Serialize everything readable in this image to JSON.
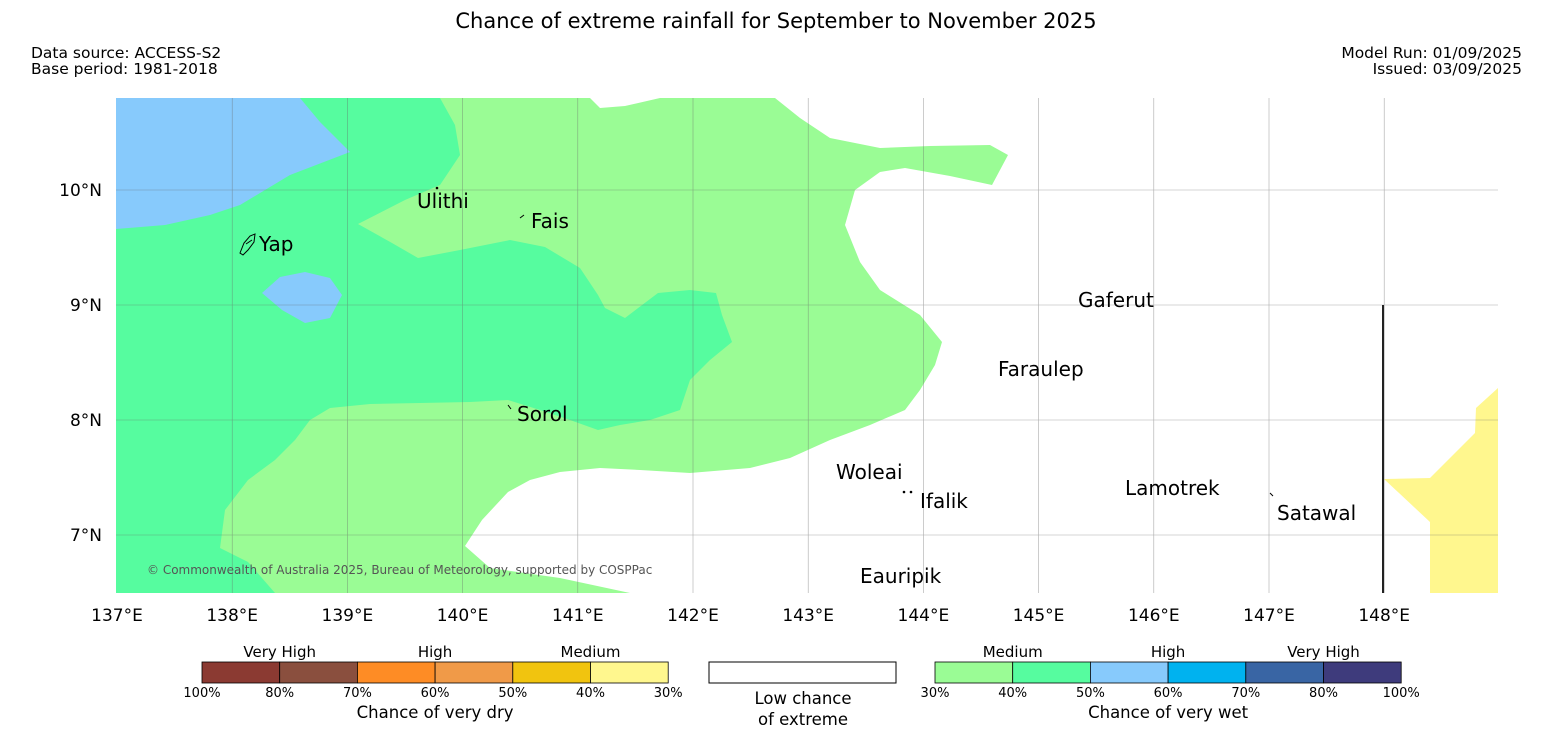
{
  "title": "Chance of extreme rainfall for September to November 2025",
  "meta": {
    "data_source": "Data source: ACCESS-S2",
    "base_period": "Base period: 1981-2018",
    "model_run": "Model Run: 01/09/2025",
    "issued": "Issued: 03/09/2025"
  },
  "map": {
    "copyright": "© Commonwealth of Australia 2025, Bureau of Meteorology, supported by COSPPac",
    "lon_ticks": [
      "137°E",
      "138°E",
      "139°E",
      "140°E",
      "141°E",
      "142°E",
      "143°E",
      "144°E",
      "145°E",
      "146°E",
      "147°E",
      "148°E"
    ],
    "lat_ticks": [
      "10°N",
      "9°N",
      "8°N",
      "7°N"
    ],
    "places": {
      "ulithi": "Ulithi",
      "fais": "Fais",
      "yap": "Yap",
      "gaferut": "Gaferut",
      "faraulep": "Faraulep",
      "sorol": "Sorol",
      "woleai": "Woleai",
      "ifalik": "Ifalik",
      "lamotrek": "Lamotrek",
      "satawal": "Satawal",
      "eauripik": "Eauripik"
    }
  },
  "legend": {
    "dry": {
      "caption": "Chance of very dry",
      "headers": [
        "Very High",
        "High",
        "Medium"
      ],
      "colors": [
        "#8b3a32",
        "#8a4f3e",
        "#fe8c25",
        "#f09a48",
        "#f1c40f",
        "#fff78e"
      ],
      "ticks": [
        "100%",
        "80%",
        "70%",
        "60%",
        "50%",
        "40%",
        "30%"
      ]
    },
    "low": {
      "caption_line1": "Low chance",
      "caption_line2": "of extreme"
    },
    "wet": {
      "caption": "Chance of very wet",
      "headers": [
        "Medium",
        "High",
        "Very High"
      ],
      "colors": [
        "#9afc95",
        "#56fc9f",
        "#87cafc",
        "#00b2ef",
        "#3965a4",
        "#3e3b7c"
      ],
      "ticks": [
        "30%",
        "40%",
        "50%",
        "60%",
        "70%",
        "80%",
        "100%"
      ]
    }
  },
  "colors": {
    "wet_medium_light": "#9afc95",
    "wet_medium": "#56fc9f",
    "wet_high": "#87cafc",
    "dry_medium": "#fff78e"
  }
}
